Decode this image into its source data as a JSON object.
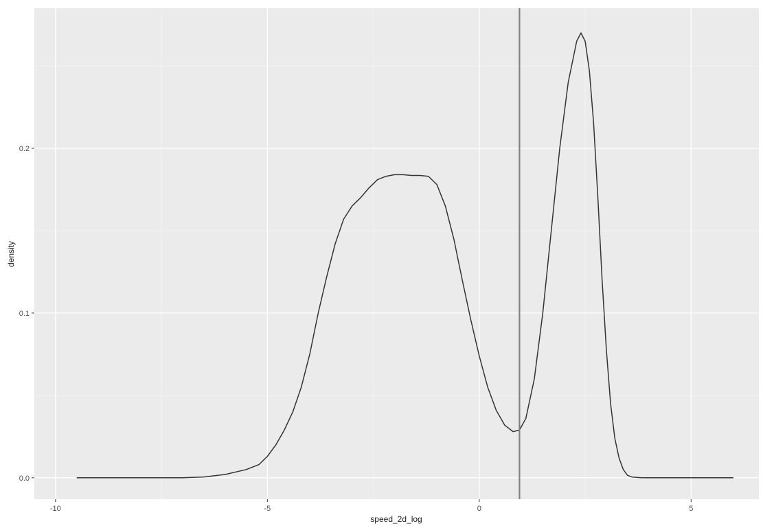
{
  "chart_data": {
    "type": "line",
    "title": "",
    "xlabel": "speed_2d_log",
    "ylabel": "density",
    "xlim": [
      -10.5,
      6.6
    ],
    "ylim": [
      -0.013,
      0.285
    ],
    "x_ticks": [
      -10,
      -5,
      0,
      5
    ],
    "x_tick_labels": [
      "-10",
      "-5",
      "0",
      "5"
    ],
    "y_ticks": [
      0.0,
      0.1,
      0.2
    ],
    "y_tick_labels": [
      "0.0",
      "0.1",
      "0.2"
    ],
    "grid": true,
    "vline": {
      "x": 0.95,
      "color": "#808080"
    },
    "series": [
      {
        "color": "#333333",
        "x": [
          -9.5,
          -8.0,
          -7.0,
          -6.5,
          -6.0,
          -5.5,
          -5.2,
          -5.0,
          -4.8,
          -4.6,
          -4.4,
          -4.2,
          -4.0,
          -3.8,
          -3.6,
          -3.4,
          -3.2,
          -3.0,
          -2.8,
          -2.6,
          -2.4,
          -2.2,
          -2.0,
          -1.8,
          -1.6,
          -1.4,
          -1.2,
          -1.0,
          -0.8,
          -0.6,
          -0.4,
          -0.2,
          0.0,
          0.2,
          0.4,
          0.6,
          0.8,
          0.95,
          1.1,
          1.3,
          1.5,
          1.7,
          1.9,
          2.1,
          2.3,
          2.4,
          2.5,
          2.6,
          2.7,
          2.8,
          2.9,
          3.0,
          3.1,
          3.2,
          3.3,
          3.4,
          3.5,
          3.6,
          3.8,
          4.0,
          4.5,
          6.0
        ],
        "y": [
          0.0,
          0.0,
          0.0,
          0.0005,
          0.002,
          0.005,
          0.008,
          0.013,
          0.02,
          0.029,
          0.04,
          0.055,
          0.075,
          0.1,
          0.122,
          0.142,
          0.157,
          0.165,
          0.17,
          0.176,
          0.181,
          0.183,
          0.184,
          0.184,
          0.1835,
          0.1835,
          0.183,
          0.178,
          0.165,
          0.145,
          0.12,
          0.096,
          0.074,
          0.055,
          0.041,
          0.032,
          0.028,
          0.029,
          0.036,
          0.06,
          0.1,
          0.15,
          0.2,
          0.24,
          0.265,
          0.27,
          0.265,
          0.247,
          0.215,
          0.17,
          0.12,
          0.078,
          0.045,
          0.024,
          0.012,
          0.005,
          0.0015,
          0.0005,
          0.0001,
          0.0,
          0.0,
          0.0
        ]
      }
    ]
  }
}
